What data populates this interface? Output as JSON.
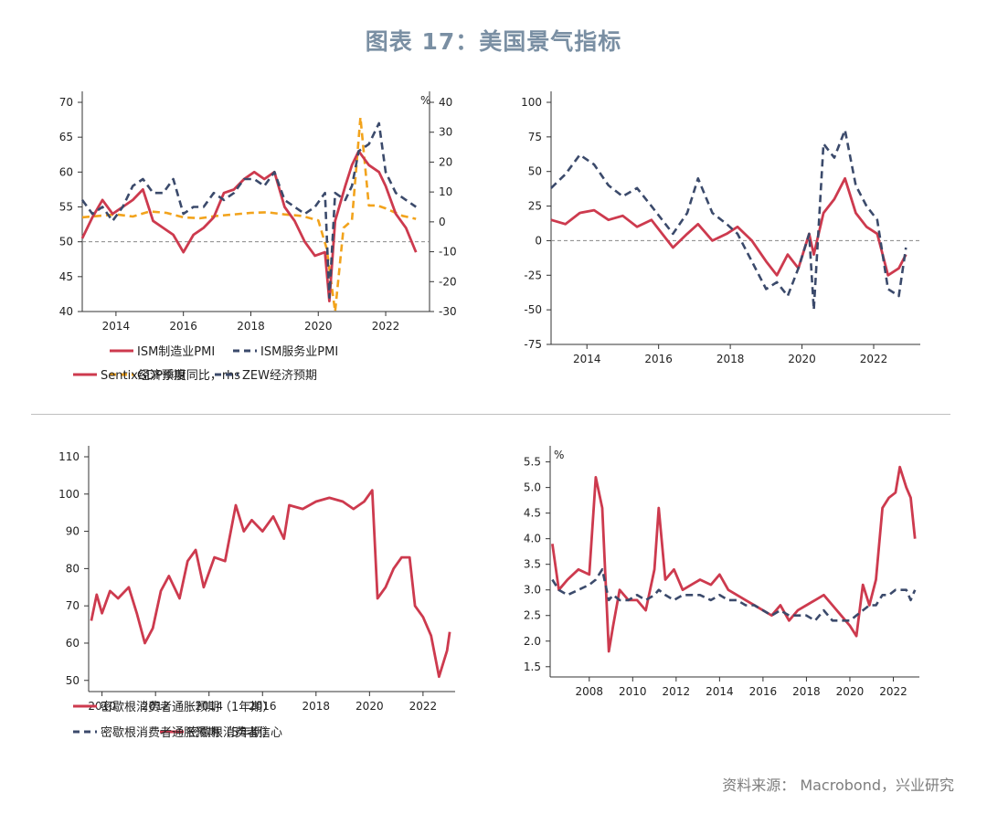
{
  "figure_title": "图表 17：美国景气指标",
  "source": "资料来源： Macrobond，兴业研究",
  "colors": {
    "red": "#cd3a4e",
    "navy": "#3b4a6b",
    "orange": "#f2a31c",
    "ref": "#888888"
  },
  "chart_data": [
    {
      "type": "line",
      "x_ticks": [
        "2014",
        "2016",
        "2018",
        "2020",
        "2022"
      ],
      "xlim": [
        2013,
        2023.3
      ],
      "left_axis": {
        "ticks": [
          40,
          45,
          50,
          55,
          60,
          65,
          70
        ],
        "ylim": [
          40,
          70
        ]
      },
      "right_axis": {
        "ticks": [
          -30,
          -20,
          -10,
          0,
          10,
          20,
          30,
          40
        ],
        "ylim": [
          -30,
          40
        ],
        "unit": "%"
      },
      "reference_line": 50,
      "series": [
        {
          "name": "ISM制造业PMI",
          "axis": "left",
          "color": "red",
          "dash": false,
          "x": [
            2013.0,
            2013.3,
            2013.6,
            2013.9,
            2014.2,
            2014.5,
            2014.8,
            2015.1,
            2015.4,
            2015.7,
            2016.0,
            2016.3,
            2016.6,
            2016.9,
            2017.2,
            2017.5,
            2017.8,
            2018.1,
            2018.4,
            2018.7,
            2019.0,
            2019.3,
            2019.6,
            2019.9,
            2020.2,
            2020.33,
            2020.5,
            2020.8,
            2021.0,
            2021.2,
            2021.5,
            2021.8,
            2022.0,
            2022.3,
            2022.6,
            2022.9
          ],
          "y": [
            50.5,
            53.5,
            56,
            54,
            55,
            56,
            57.5,
            53,
            52,
            51,
            48.5,
            51,
            52,
            53.5,
            57,
            57.5,
            59,
            60,
            59,
            60,
            55,
            53,
            50,
            48,
            48.5,
            41.5,
            53,
            58,
            61,
            63,
            61,
            60,
            58,
            54,
            52,
            48.5
          ]
        },
        {
          "name": "ISM服务业PMI",
          "axis": "left",
          "color": "navy",
          "dash": true,
          "x": [
            2013.0,
            2013.3,
            2013.6,
            2013.9,
            2014.2,
            2014.5,
            2014.8,
            2015.1,
            2015.4,
            2015.7,
            2016.0,
            2016.3,
            2016.6,
            2016.9,
            2017.2,
            2017.5,
            2017.8,
            2018.1,
            2018.4,
            2018.7,
            2019.0,
            2019.3,
            2019.6,
            2019.9,
            2020.2,
            2020.33,
            2020.5,
            2020.8,
            2021.0,
            2021.2,
            2021.5,
            2021.8,
            2022.0,
            2022.3,
            2022.6,
            2022.9
          ],
          "y": [
            56,
            54,
            55,
            53,
            55,
            58,
            59,
            57,
            57,
            59,
            54,
            55,
            55,
            57,
            56,
            57,
            59,
            59,
            58,
            60,
            56,
            55,
            54,
            55,
            57,
            42,
            57,
            56,
            58,
            63,
            64,
            67,
            60,
            57,
            56,
            55
          ]
        },
        {
          "name": "GDP季度同比，rhs",
          "axis": "right",
          "color": "orange",
          "dash": true,
          "x": [
            2013.0,
            2013.5,
            2014.0,
            2014.5,
            2015.0,
            2015.5,
            2016.0,
            2016.5,
            2017.0,
            2017.5,
            2018.0,
            2018.5,
            2019.0,
            2019.5,
            2020.0,
            2020.25,
            2020.5,
            2020.75,
            2021.0,
            2021.25,
            2021.5,
            2021.75,
            2022.0,
            2022.5,
            2022.9
          ],
          "y": [
            1.5,
            2.0,
            2.5,
            1.8,
            3.5,
            3.0,
            1.5,
            1.2,
            2.0,
            2.5,
            3.0,
            3.2,
            2.5,
            2.0,
            0.5,
            -9.0,
            -30.0,
            -2.0,
            0.5,
            35.0,
            5.5,
            5.5,
            4.5,
            2.0,
            1.0
          ]
        }
      ],
      "legend": [
        {
          "label": "ISM制造业PMI",
          "color": "red",
          "dash": false
        },
        {
          "label": "ISM服务业PMI",
          "color": "navy",
          "dash": true
        },
        {
          "label": "GDP季度同比，rhs",
          "color": "orange",
          "dash": true
        }
      ]
    },
    {
      "type": "line",
      "x_ticks": [
        "2014",
        "2016",
        "2018",
        "2020",
        "2022"
      ],
      "xlim": [
        2013,
        2023.3
      ],
      "left_axis": {
        "ticks": [
          -75,
          -50,
          -25,
          0,
          25,
          50,
          75,
          100
        ],
        "ylim": [
          -75,
          100
        ]
      },
      "reference_line": 0,
      "series": [
        {
          "name": "Sentix经济预期",
          "color": "red",
          "dash": false,
          "x": [
            2013.0,
            2013.4,
            2013.8,
            2014.2,
            2014.6,
            2015.0,
            2015.4,
            2015.8,
            2016.1,
            2016.4,
            2016.8,
            2017.1,
            2017.5,
            2017.9,
            2018.2,
            2018.6,
            2019.0,
            2019.3,
            2019.6,
            2019.9,
            2020.2,
            2020.33,
            2020.6,
            2020.9,
            2021.2,
            2021.5,
            2021.8,
            2022.1,
            2022.4,
            2022.7,
            2022.9
          ],
          "y": [
            15,
            12,
            20,
            22,
            15,
            18,
            10,
            15,
            5,
            -5,
            5,
            12,
            0,
            5,
            10,
            0,
            -15,
            -25,
            -10,
            -20,
            5,
            -10,
            20,
            30,
            45,
            20,
            10,
            5,
            -25,
            -20,
            -10
          ]
        },
        {
          "name": "ZEW经济预期",
          "color": "navy",
          "dash": true,
          "x": [
            2013.0,
            2013.4,
            2013.8,
            2014.2,
            2014.6,
            2015.0,
            2015.4,
            2015.8,
            2016.1,
            2016.4,
            2016.8,
            2017.1,
            2017.5,
            2017.9,
            2018.2,
            2018.6,
            2019.0,
            2019.3,
            2019.6,
            2019.9,
            2020.2,
            2020.33,
            2020.6,
            2020.9,
            2021.2,
            2021.5,
            2021.8,
            2022.1,
            2022.4,
            2022.7,
            2022.9
          ],
          "y": [
            38,
            48,
            62,
            55,
            40,
            32,
            38,
            25,
            15,
            5,
            20,
            45,
            20,
            12,
            5,
            -15,
            -35,
            -30,
            -40,
            -20,
            5,
            -50,
            70,
            60,
            80,
            40,
            25,
            15,
            -35,
            -40,
            -5
          ]
        }
      ],
      "legend": [
        {
          "label": "Sentix经济预期",
          "color": "red",
          "dash": false
        },
        {
          "label": "ZEW经济预期",
          "color": "navy",
          "dash": true
        }
      ]
    },
    {
      "type": "line",
      "x_ticks": [
        "2010",
        "2012",
        "2014",
        "2016",
        "2018",
        "2020",
        "2022"
      ],
      "xlim": [
        2009.5,
        2023.2
      ],
      "left_axis": {
        "ticks": [
          50,
          60,
          70,
          80,
          90,
          100,
          110
        ],
        "ylim": [
          47,
          110
        ]
      },
      "series": [
        {
          "name": "密歇根消费者信心",
          "color": "red",
          "dash": false,
          "x": [
            2009.6,
            2009.8,
            2010.0,
            2010.3,
            2010.6,
            2011.0,
            2011.3,
            2011.6,
            2011.9,
            2012.2,
            2012.5,
            2012.9,
            2013.2,
            2013.5,
            2013.8,
            2014.2,
            2014.6,
            2015.0,
            2015.3,
            2015.6,
            2016.0,
            2016.4,
            2016.8,
            2017.0,
            2017.5,
            2018.0,
            2018.5,
            2019.0,
            2019.4,
            2019.8,
            2020.1,
            2020.3,
            2020.6,
            2020.9,
            2021.2,
            2021.5,
            2021.7,
            2022.0,
            2022.3,
            2022.6,
            2022.9,
            2023.0
          ],
          "y": [
            66,
            73,
            68,
            74,
            72,
            75,
            68,
            60,
            64,
            74,
            78,
            72,
            82,
            85,
            75,
            83,
            82,
            97,
            90,
            93,
            90,
            94,
            88,
            97,
            96,
            98,
            99,
            98,
            96,
            98,
            101,
            72,
            75,
            80,
            83,
            83,
            70,
            67,
            62,
            51,
            58,
            63
          ]
        }
      ],
      "legend": [
        {
          "label": "密歇根消费者信心",
          "color": "red",
          "dash": false
        }
      ]
    },
    {
      "type": "line",
      "x_ticks": [
        "2008",
        "2010",
        "2012",
        "2014",
        "2016",
        "2018",
        "2020",
        "2022"
      ],
      "xlim": [
        2006.2,
        2023.2
      ],
      "left_axis": {
        "ticks": [
          1.5,
          2.0,
          2.5,
          3.0,
          3.5,
          4.0,
          4.5,
          5.0,
          5.5
        ],
        "ylim": [
          1.3,
          5.6
        ],
        "unit": "%"
      },
      "series": [
        {
          "name": "密歇根消费者通胀预期（1年期）",
          "color": "red",
          "dash": false,
          "x": [
            2006.3,
            2006.6,
            2007.0,
            2007.5,
            2008.0,
            2008.3,
            2008.6,
            2008.9,
            2009.1,
            2009.4,
            2009.8,
            2010.2,
            2010.6,
            2011.0,
            2011.2,
            2011.5,
            2011.9,
            2012.3,
            2012.7,
            2013.1,
            2013.6,
            2014.0,
            2014.4,
            2014.8,
            2015.2,
            2015.6,
            2016.0,
            2016.4,
            2016.8,
            2017.2,
            2017.6,
            2018.0,
            2018.4,
            2018.8,
            2019.2,
            2019.6,
            2020.0,
            2020.3,
            2020.6,
            2020.9,
            2021.2,
            2021.5,
            2021.8,
            2022.1,
            2022.3,
            2022.6,
            2022.8,
            2023.0
          ],
          "y": [
            3.9,
            3.0,
            3.2,
            3.4,
            3.3,
            5.2,
            4.6,
            1.8,
            2.3,
            3.0,
            2.8,
            2.8,
            2.6,
            3.4,
            4.6,
            3.2,
            3.4,
            3.0,
            3.1,
            3.2,
            3.1,
            3.3,
            3.0,
            2.9,
            2.8,
            2.7,
            2.6,
            2.5,
            2.7,
            2.4,
            2.6,
            2.7,
            2.8,
            2.9,
            2.7,
            2.5,
            2.3,
            2.1,
            3.1,
            2.7,
            3.2,
            4.6,
            4.8,
            4.9,
            5.4,
            5.0,
            4.8,
            4.0
          ]
        },
        {
          "name": "密歇根消费者通胀预期（5年期）",
          "color": "navy",
          "dash": true,
          "x": [
            2006.3,
            2006.6,
            2007.0,
            2007.5,
            2008.0,
            2008.3,
            2008.6,
            2008.9,
            2009.1,
            2009.4,
            2009.8,
            2010.2,
            2010.6,
            2011.0,
            2011.2,
            2011.5,
            2011.9,
            2012.3,
            2012.7,
            2013.1,
            2013.6,
            2014.0,
            2014.4,
            2014.8,
            2015.2,
            2015.6,
            2016.0,
            2016.4,
            2016.8,
            2017.2,
            2017.6,
            2018.0,
            2018.4,
            2018.8,
            2019.2,
            2019.6,
            2020.0,
            2020.3,
            2020.6,
            2020.9,
            2021.2,
            2021.5,
            2021.8,
            2022.1,
            2022.3,
            2022.6,
            2022.8,
            2023.0
          ],
          "y": [
            3.2,
            3.0,
            2.9,
            3.0,
            3.1,
            3.2,
            3.4,
            2.8,
            2.9,
            2.8,
            2.8,
            2.9,
            2.8,
            2.9,
            3.0,
            2.9,
            2.8,
            2.9,
            2.9,
            2.9,
            2.8,
            2.9,
            2.8,
            2.8,
            2.7,
            2.7,
            2.6,
            2.5,
            2.6,
            2.5,
            2.5,
            2.5,
            2.4,
            2.6,
            2.4,
            2.4,
            2.4,
            2.5,
            2.6,
            2.7,
            2.7,
            2.9,
            2.9,
            3.0,
            3.0,
            3.0,
            2.8,
            3.0
          ]
        }
      ],
      "legend": [
        {
          "label": "密歇根消费者通胀预期（1年期）",
          "color": "red",
          "dash": false
        },
        {
          "label": "密歇根消费者通胀预期（5年期）",
          "color": "navy",
          "dash": true
        }
      ]
    }
  ]
}
